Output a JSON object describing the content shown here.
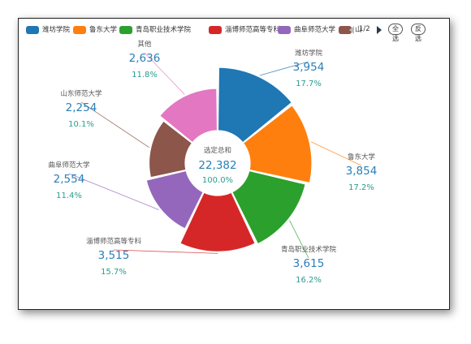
{
  "legend": {
    "items": [
      {
        "name": "潍坊学院",
        "color": "#1f77b4"
      },
      {
        "name": "鲁东大学",
        "color": "#ff7f0e"
      },
      {
        "name": "青岛职业技术学院",
        "color": "#2ca02c"
      },
      {
        "name": "淄博师范高等专科",
        "color": "#d62728"
      },
      {
        "name": "曲阜师范大学",
        "color": "#9467bd"
      },
      {
        "name": "山",
        "color": "#8c564b"
      }
    ],
    "page": "1/2",
    "select_all": "全选",
    "invert": "反选"
  },
  "center": {
    "label": "选定总和",
    "total": "22,382",
    "percent": "100.0%"
  },
  "chart_data": {
    "type": "pie",
    "style": "rose-donut",
    "series": [
      {
        "name": "潍坊学院",
        "value": 3954,
        "value_label": "3,954",
        "percent": "17.7%",
        "color": "#1f77b4"
      },
      {
        "name": "鲁东大学",
        "value": 3854,
        "value_label": "3,854",
        "percent": "17.2%",
        "color": "#ff7f0e"
      },
      {
        "name": "青岛职业技术学院",
        "value": 3615,
        "value_label": "3,615",
        "percent": "16.2%",
        "color": "#2ca02c"
      },
      {
        "name": "淄博师范高等专科",
        "value": 3515,
        "value_label": "3,515",
        "percent": "15.7%",
        "color": "#d62728"
      },
      {
        "name": "曲阜师范大学",
        "value": 2554,
        "value_label": "2,554",
        "percent": "11.4%",
        "color": "#9467bd"
      },
      {
        "name": "山东师范大学",
        "value": 2254,
        "value_label": "2,254",
        "percent": "10.1%",
        "color": "#8c564b"
      },
      {
        "name": "其他",
        "value": 2636,
        "value_label": "2,636",
        "percent": "11.8%",
        "color": "#e377c2"
      }
    ],
    "total": 22382,
    "legend_position": "top"
  }
}
